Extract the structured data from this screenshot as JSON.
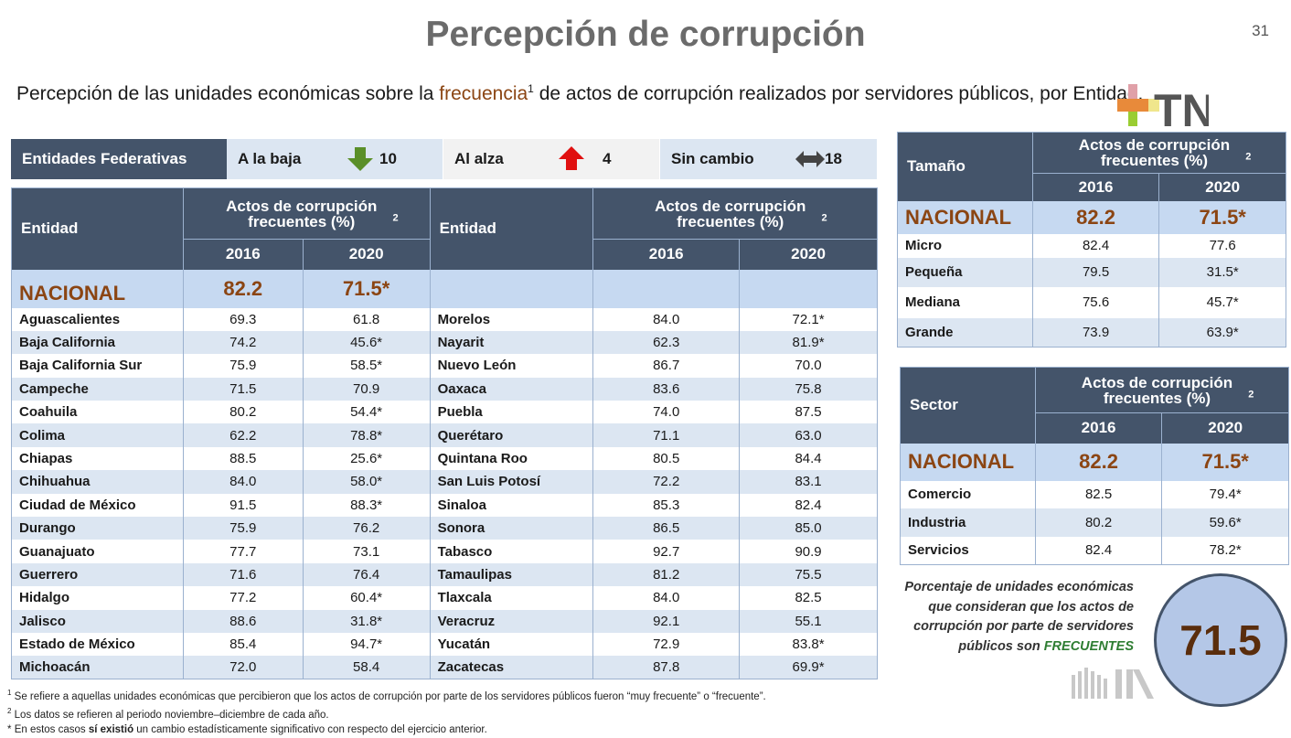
{
  "title": "Percepción de corrupción",
  "page_number": "31",
  "subtitle": {
    "before": "Percepción de las unidades económicas sobre la ",
    "highlight": "frecuencia",
    "sup": "1",
    "after": " de actos de corrupción realizados por servidores públicos, por Entidad."
  },
  "logo_text": "TN",
  "summary": {
    "label": "Entidades Federativas",
    "down_label": "A la baja",
    "down_value": "10",
    "up_label": "Al alza",
    "up_value": "4",
    "same_label": "Sin cambio",
    "same_value": "18"
  },
  "main_table": {
    "col_entidad": "Entidad",
    "col_group": "Actos de corrupción frecuentes (%)",
    "col_group_sup": "2",
    "col_2016": "2016",
    "col_2020": "2020",
    "nacional": {
      "label": "NACIONAL",
      "v2016": "82.2",
      "v2020": "71.5*"
    },
    "left_rows": [
      {
        "name": "Aguascalientes",
        "v2016": "69.3",
        "v2020": "61.8"
      },
      {
        "name": "Baja California",
        "v2016": "74.2",
        "v2020": "45.6*"
      },
      {
        "name": "Baja California Sur",
        "v2016": "75.9",
        "v2020": "58.5*"
      },
      {
        "name": "Campeche",
        "v2016": "71.5",
        "v2020": "70.9"
      },
      {
        "name": "Coahuila",
        "v2016": "80.2",
        "v2020": "54.4*"
      },
      {
        "name": "Colima",
        "v2016": "62.2",
        "v2020": "78.8*"
      },
      {
        "name": "Chiapas",
        "v2016": "88.5",
        "v2020": "25.6*"
      },
      {
        "name": "Chihuahua",
        "v2016": "84.0",
        "v2020": "58.0*"
      },
      {
        "name": "Ciudad de México",
        "v2016": "91.5",
        "v2020": "88.3*"
      },
      {
        "name": "Durango",
        "v2016": "75.9",
        "v2020": "76.2"
      },
      {
        "name": "Guanajuato",
        "v2016": "77.7",
        "v2020": "73.1"
      },
      {
        "name": "Guerrero",
        "v2016": "71.6",
        "v2020": "76.4"
      },
      {
        "name": "Hidalgo",
        "v2016": "77.2",
        "v2020": "60.4*"
      },
      {
        "name": "Jalisco",
        "v2016": "88.6",
        "v2020": "31.8*"
      },
      {
        "name": "Estado de México",
        "v2016": "85.4",
        "v2020": "94.7*"
      },
      {
        "name": "Michoacán",
        "v2016": "72.0",
        "v2020": "58.4"
      }
    ],
    "right_rows": [
      {
        "name": "Morelos",
        "v2016": "84.0",
        "v2020": "72.1*"
      },
      {
        "name": "Nayarit",
        "v2016": "62.3",
        "v2020": "81.9*"
      },
      {
        "name": "Nuevo León",
        "v2016": "86.7",
        "v2020": "70.0"
      },
      {
        "name": "Oaxaca",
        "v2016": "83.6",
        "v2020": "75.8"
      },
      {
        "name": "Puebla",
        "v2016": "74.0",
        "v2020": "87.5"
      },
      {
        "name": "Querétaro",
        "v2016": "71.1",
        "v2020": "63.0"
      },
      {
        "name": "Quintana Roo",
        "v2016": "80.5",
        "v2020": "84.4"
      },
      {
        "name": "San Luis Potosí",
        "v2016": "72.2",
        "v2020": "83.1"
      },
      {
        "name": "Sinaloa",
        "v2016": "85.3",
        "v2020": "82.4"
      },
      {
        "name": "Sonora",
        "v2016": "86.5",
        "v2020": "85.0"
      },
      {
        "name": "Tabasco",
        "v2016": "92.7",
        "v2020": "90.9"
      },
      {
        "name": "Tamaulipas",
        "v2016": "81.2",
        "v2020": "75.5"
      },
      {
        "name": "Tlaxcala",
        "v2016": "84.0",
        "v2020": "82.5"
      },
      {
        "name": "Veracruz",
        "v2016": "92.1",
        "v2020": "55.1"
      },
      {
        "name": "Yucatán",
        "v2016": "72.9",
        "v2020": "83.8*"
      },
      {
        "name": "Zacatecas",
        "v2016": "87.8",
        "v2020": "69.9*"
      }
    ]
  },
  "tamano_table": {
    "col_label": "Tamaño",
    "col_group": "Actos de corrupción frecuentes (%)",
    "col_group_sup": "2",
    "col_2016": "2016",
    "col_2020": "2020",
    "nacional": {
      "label": "NACIONAL",
      "v2016": "82.2",
      "v2020": "71.5*"
    },
    "rows": [
      {
        "name": "Micro",
        "v2016": "82.4",
        "v2020": "77.6"
      },
      {
        "name": "Pequeña",
        "v2016": "79.5",
        "v2020": "31.5*"
      },
      {
        "name": "Mediana",
        "v2016": "75.6",
        "v2020": "45.7*"
      },
      {
        "name": "Grande",
        "v2016": "73.9",
        "v2020": "63.9*"
      }
    ]
  },
  "sector_table": {
    "col_label": "Sector",
    "col_group": "Actos de corrupción frecuentes (%)",
    "col_group_sup": "2",
    "col_2016": "2016",
    "col_2020": "2020",
    "nacional": {
      "label": "NACIONAL",
      "v2016": "82.2",
      "v2020": "71.5*"
    },
    "rows": [
      {
        "name": "Comercio",
        "v2016": "82.5",
        "v2020": "79.4*"
      },
      {
        "name": "Industria",
        "v2016": "80.2",
        "v2020": "59.6*"
      },
      {
        "name": "Servicios",
        "v2016": "82.4",
        "v2020": "78.2*"
      }
    ]
  },
  "circle_note": {
    "text": "Porcentaje de unidades económicas que consideran que los actos de corrupción por parte de servidores públicos son",
    "highlight": "FRECUENTES",
    "value": "71.5"
  },
  "footnotes": {
    "f1_mark": "1",
    "f1": "Se refiere a aquellas unidades económicas que percibieron que los actos de corrupción por parte de los servidores públicos fueron “muy frecuente” o “frecuente”.",
    "f2_mark": "2",
    "f2": "Los datos se refieren al periodo noviembre–diciembre de cada año.",
    "f3_mark": "*",
    "f3_before": "En estos casos ",
    "f3_bold": "sí existió",
    "f3_after": " un cambio estadísticamente significativo con respecto del ejercicio anterior."
  },
  "colors": {
    "header_bg": "#44546a",
    "light_row": "#dce6f2",
    "nacional_bg": "#c6d9f1",
    "accent_brown": "#8b4513",
    "down_arrow": "#5a8f29",
    "up_arrow": "#e01010"
  }
}
